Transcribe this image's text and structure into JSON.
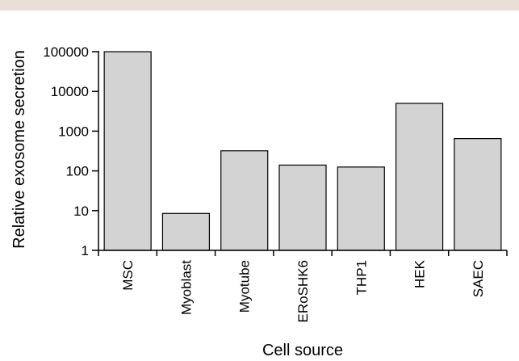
{
  "chart_data": {
    "type": "bar",
    "scale": "log",
    "categories": [
      "MSC",
      "Myoblast",
      "Myotube",
      "ERoSHK6",
      "THP1",
      "HEK",
      "SAEC"
    ],
    "values": [
      100000,
      8.5,
      320,
      140,
      125,
      5000,
      650
    ],
    "ylim": [
      1,
      100000
    ],
    "yticks": [
      1,
      10,
      100,
      1000,
      10000,
      100000
    ],
    "ytick_labels": [
      "1",
      "10",
      "100",
      "1000",
      "10000",
      "100000"
    ],
    "xlabel": "Cell source",
    "ylabel": "Relative exosome secretion",
    "grid": false,
    "bar_color": "#d3d3d3"
  }
}
